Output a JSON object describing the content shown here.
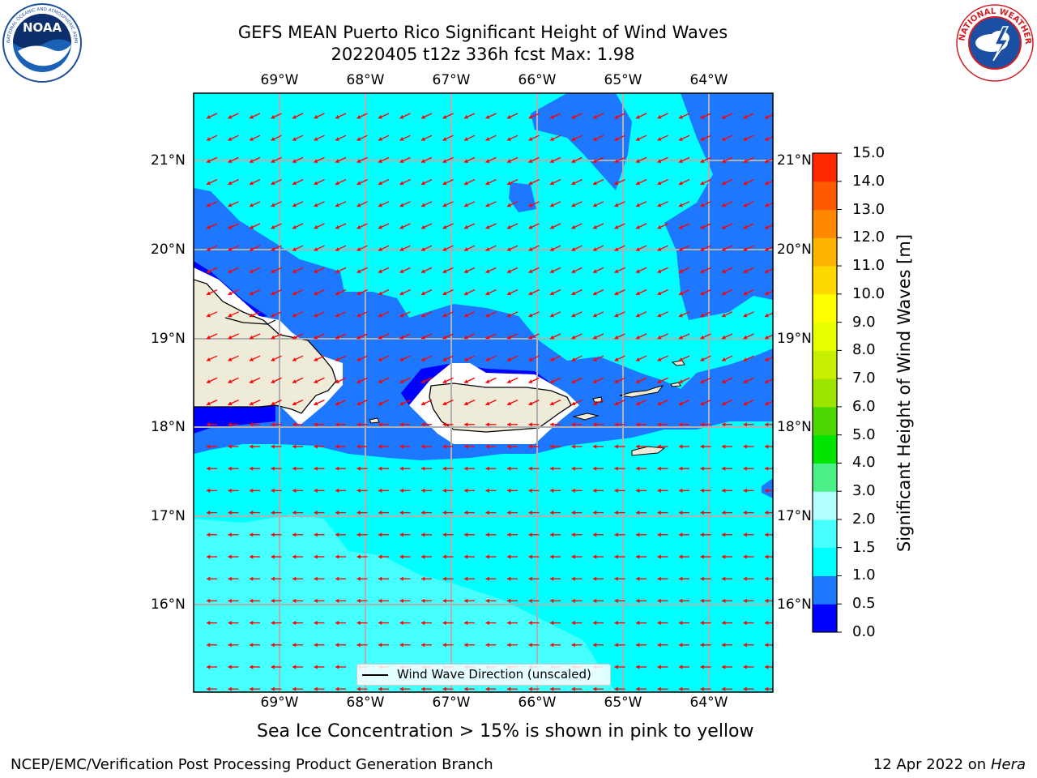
{
  "title": {
    "line1": "GEFS MEAN Puerto Rico Significant Height of Wind Waves",
    "line2": "20220405 t12z 336h fcst   Max: 1.98"
  },
  "logos": {
    "noaa": {
      "text": "NOAA",
      "ring_text": "NATIONAL OCEANIC AND ATMOSPHERIC ADMINISTRATION · U.S. DEPARTMENT OF COMMERCE",
      "icon": "noaa-logo"
    },
    "nws": {
      "ring_text": "NATIONAL WEATHER SERVICE",
      "icon": "nws-logo"
    }
  },
  "map": {
    "lon_labels": [
      "69°W",
      "68°W",
      "67°W",
      "66°W",
      "65°W",
      "64°W"
    ],
    "lat_labels": [
      "21°N",
      "20°N",
      "19°N",
      "18°N",
      "17°N",
      "16°N"
    ],
    "legend_label": "Wind Wave Direction (unscaled)",
    "land_color": "#efebd9",
    "arrow_color": "#ff0000",
    "gridline_color": "#b0b0b0"
  },
  "colorbar": {
    "title": "Significant Height of Wind Waves [m]",
    "ticks": [
      "0.0",
      "0.5",
      "1.0",
      "1.5",
      "2.0",
      "3.0",
      "4.0",
      "5.0",
      "6.0",
      "7.0",
      "8.0",
      "9.0",
      "10.0",
      "11.0",
      "12.0",
      "13.0",
      "14.0",
      "15.0"
    ],
    "colors": [
      "#0000ff",
      "#1e78ff",
      "#00ffff",
      "#46ffff",
      "#b4ffff",
      "#4cf088",
      "#00e400",
      "#4dd600",
      "#9ee600",
      "#c8f000",
      "#e8ff00",
      "#ffff00",
      "#ffd800",
      "#ffb400",
      "#ff8800",
      "#ff5a00",
      "#ff2800"
    ]
  },
  "footer": {
    "sea_ice": "Sea Ice Concentration > 15% is shown in pink to yellow",
    "left": "NCEP/EMC/Verification Post Processing Product Generation Branch",
    "right_prefix": "12 Apr 2022 on ",
    "right_host": "Hera"
  }
}
